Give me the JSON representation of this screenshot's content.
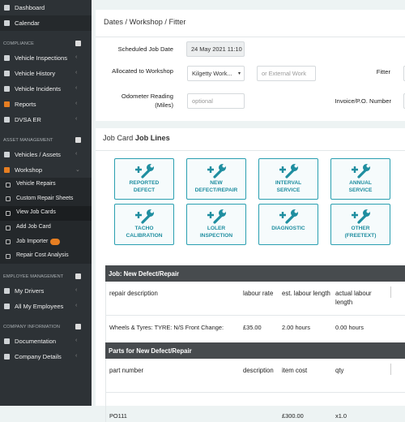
{
  "sidebar": {
    "top": [
      {
        "label": "Dashboard"
      },
      {
        "label": "Calendar"
      }
    ],
    "sections": [
      {
        "title": "COMPLIANCE",
        "items": [
          {
            "label": "Vehicle Inspections"
          },
          {
            "label": "Vehicle History"
          },
          {
            "label": "Vehicle Incidents"
          },
          {
            "label": "Reports"
          },
          {
            "label": "DVSA ER"
          }
        ]
      },
      {
        "title": "ASSET MANAGEMENT",
        "items": [
          {
            "label": "Vehicles / Assets"
          },
          {
            "label": "Workshop",
            "children": [
              "Vehicle Repairs",
              "Custom Repair Sheets",
              "View Job Cards",
              "Add Job Card",
              "Job Importer",
              "Repair Cost Analysis"
            ]
          }
        ]
      },
      {
        "title": "EMPLOYEE MANAGEMENT",
        "items": [
          {
            "label": "My Drivers"
          },
          {
            "label": "All My Employees"
          }
        ]
      },
      {
        "title": "COMPANY INFORMATION",
        "items": [
          {
            "label": "Documentation"
          },
          {
            "label": "Company Details"
          }
        ]
      }
    ]
  },
  "dates_panel": {
    "title": "Dates / Workshop / Fitter",
    "scheduled": {
      "label": "Scheduled Job Date",
      "value": "24 May 2021 11:10"
    },
    "allocated": {
      "label": "Allocated to Workshop",
      "value": "Kilgetty Work...",
      "placeholder": "or External Work"
    },
    "fitter": {
      "label": "Fitter"
    },
    "odometer": {
      "label": "Odometer Reading (Miles)",
      "placeholder": "optional"
    },
    "invoice": {
      "label": "Invoice/P.O. Number"
    }
  },
  "job_lines": {
    "title_prefix": "Job Card",
    "title_bold": "Job Lines",
    "buttons": [
      [
        "REPORTED",
        "DEFECT"
      ],
      [
        "NEW",
        "DEFECT/REPAIR"
      ],
      [
        "INTERVAL",
        "SERVICE"
      ],
      [
        "ANNUAL",
        "SERVICE"
      ],
      [
        "TACHO",
        "CALIBRATION"
      ],
      [
        "LOLER",
        "INSPECTION"
      ],
      [
        "DIAGNOSTIC"
      ],
      [
        "OTHER",
        "(FREETEXT)"
      ]
    ]
  },
  "repairs": {
    "title": "Job: New Defect/Repair",
    "columns": [
      "repair description",
      "labour rate",
      "est. labour length",
      "actual labour length"
    ],
    "rows": [
      [
        "Wheels & Tyres: TYRE: N/S Front Change:",
        "£35.00",
        "2.00 hours",
        "0.00 hours"
      ]
    ]
  },
  "parts": {
    "title": "Parts for New Defect/Repair",
    "columns": [
      "part number",
      "description",
      "item cost",
      "qty"
    ],
    "rows": [
      [
        "PO111",
        "",
        "£300.00",
        "x1.0"
      ]
    ]
  }
}
